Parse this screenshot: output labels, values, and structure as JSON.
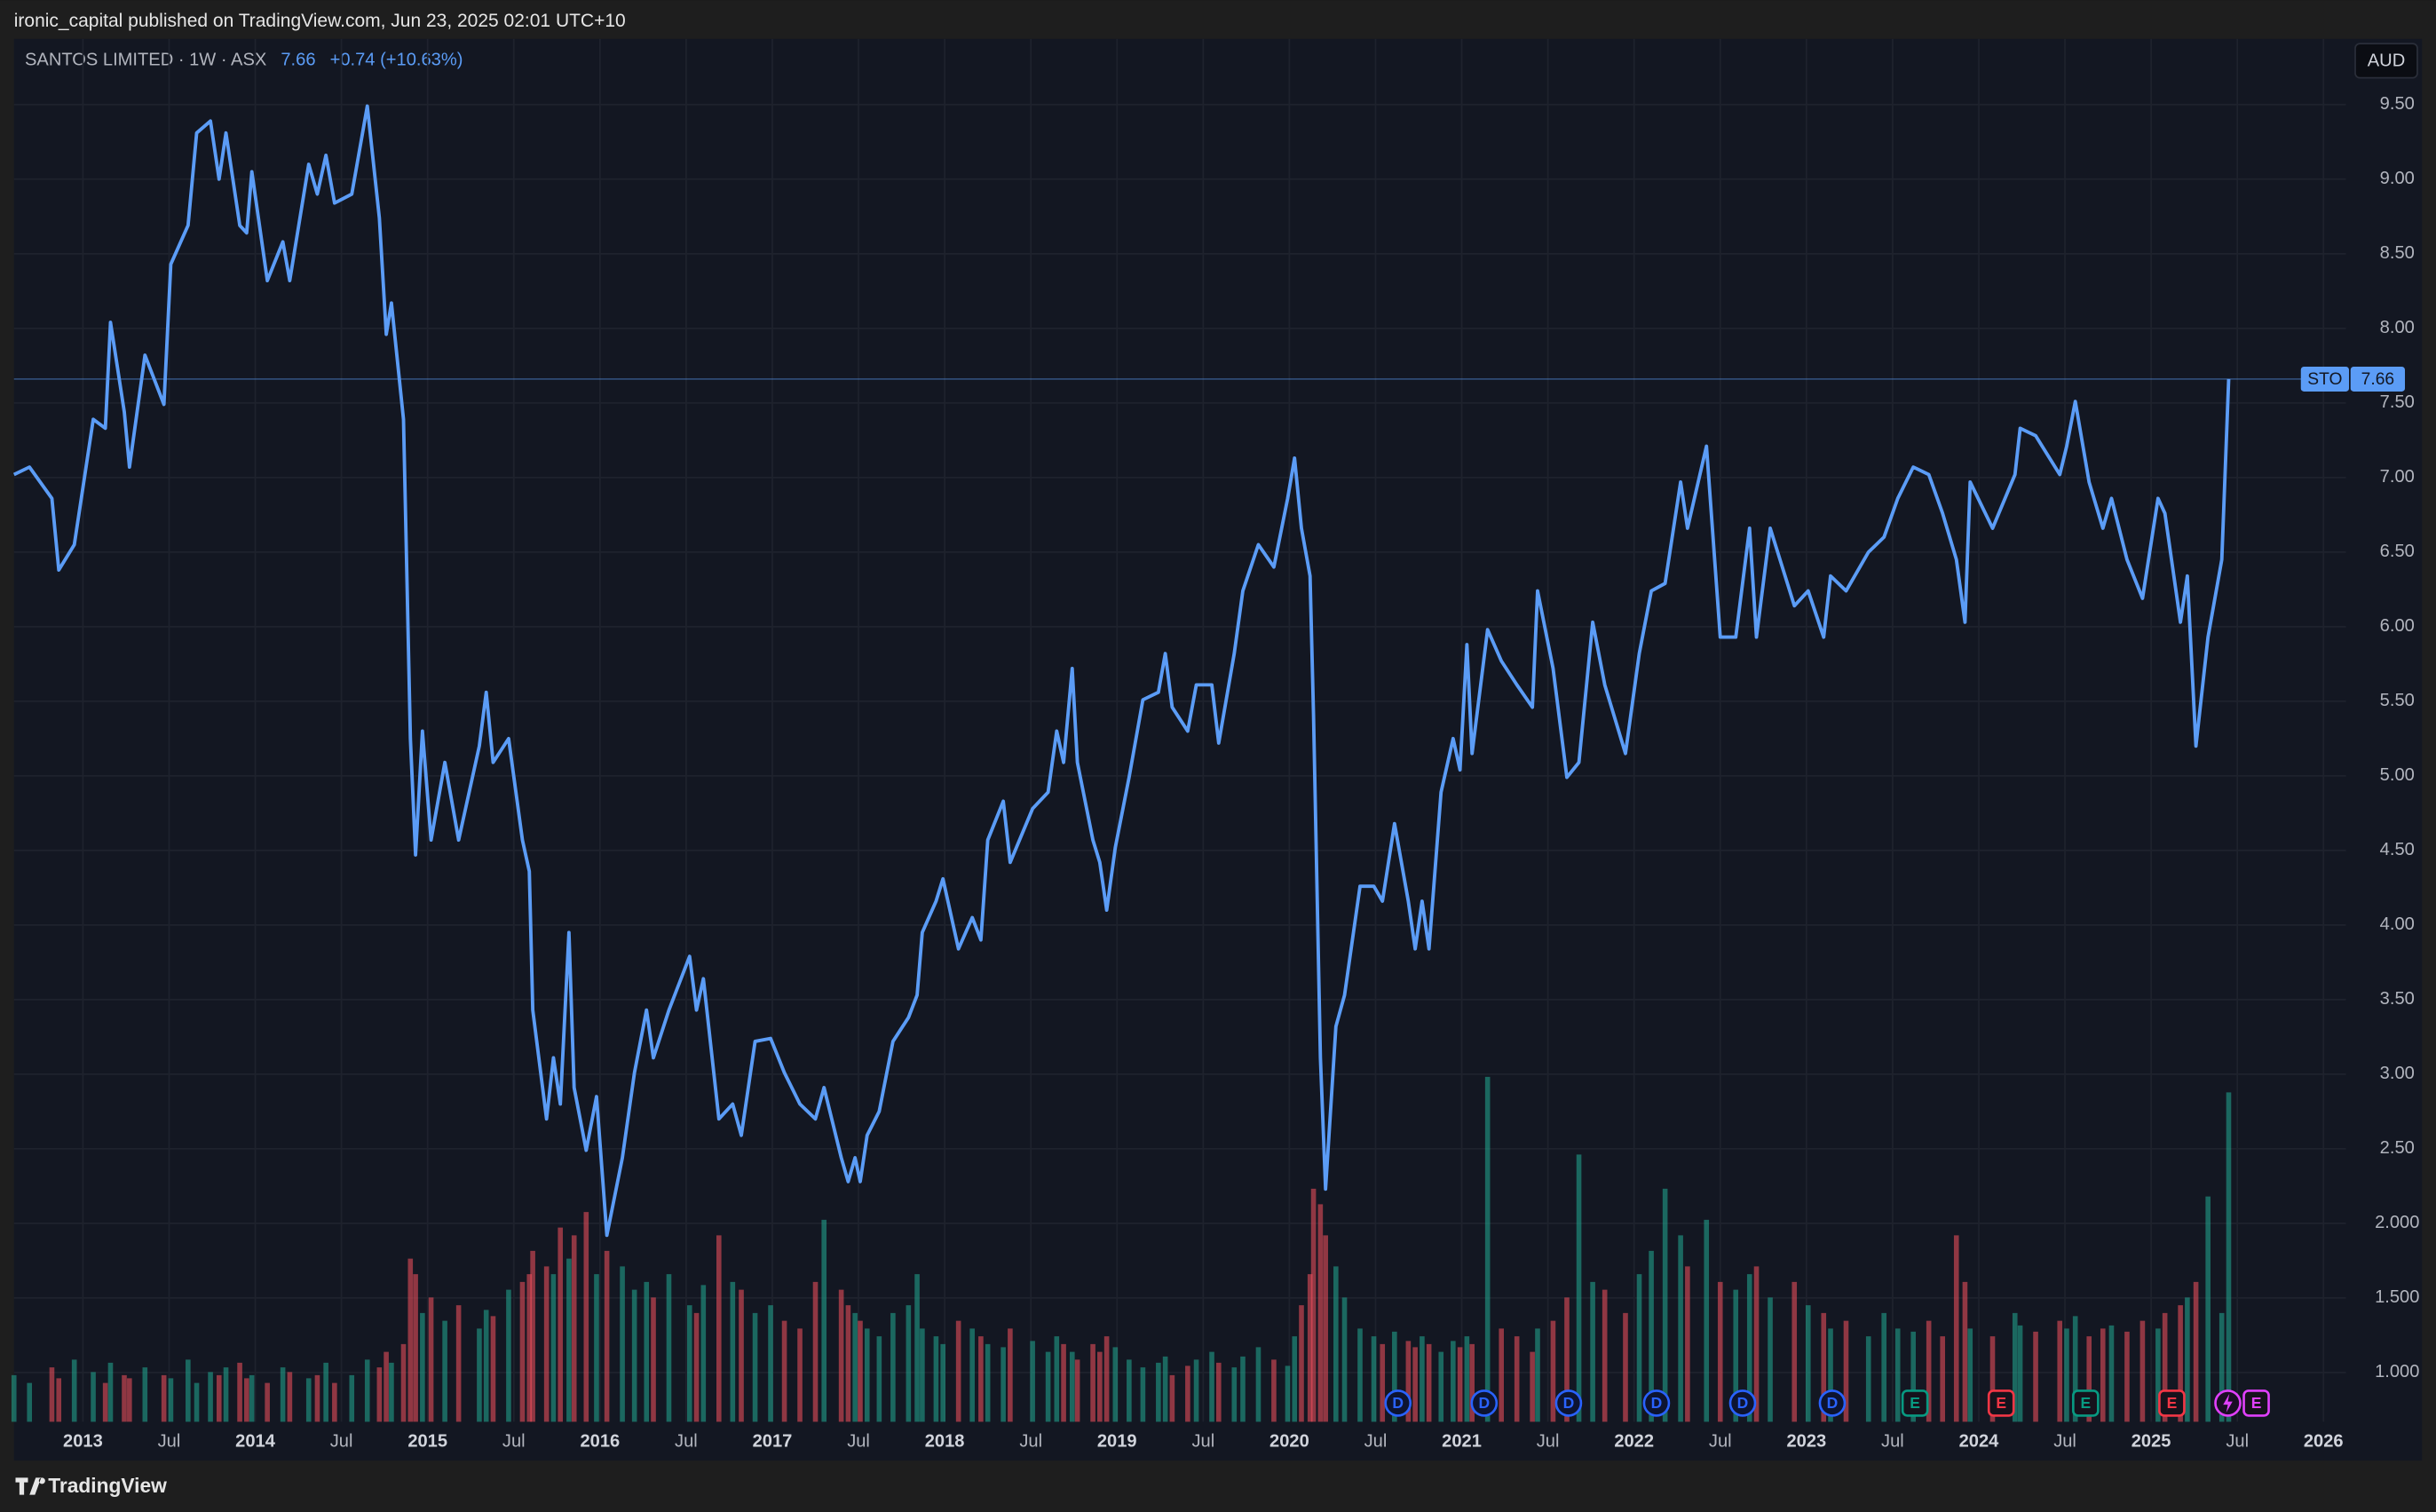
{
  "header": {
    "publisher": "ironic_capital published on TradingView.com, Jun 23, 2025 02:01 UTC+10",
    "brand": "TradingView"
  },
  "chart_data": {
    "type": "line",
    "title": "SANTOS LIMITED · 1W · ASX",
    "change": "+0.74 (+10.63%)",
    "currency": "AUD",
    "xlim": [
      2012.6,
      2026.13
    ],
    "ylim": [
      0.67,
      9.94
    ],
    "grid": true,
    "xticks": [
      2013,
      {
        "value": 2013.5,
        "label": "Jul"
      },
      2014,
      {
        "value": 2014.5,
        "label": "Jul"
      },
      2015,
      {
        "value": 2015.5,
        "label": "Jul"
      },
      2016,
      {
        "value": 2016.5,
        "label": "Jul"
      },
      2017,
      {
        "value": 2017.5,
        "label": "Jul"
      },
      2018,
      {
        "value": 2018.5,
        "label": "Jul"
      },
      2019,
      {
        "value": 2019.5,
        "label": "Jul"
      },
      2020,
      {
        "value": 2020.5,
        "label": "Jul"
      },
      2021,
      {
        "value": 2021.5,
        "label": "Jul"
      },
      2022,
      {
        "value": 2022.5,
        "label": "Jul"
      },
      2023,
      {
        "value": 2023.5,
        "label": "Jul"
      },
      2024,
      {
        "value": 2024.5,
        "label": "Jul"
      },
      2025,
      {
        "value": 2025.5,
        "label": "Jul"
      },
      2026
    ],
    "yticks": [
      {
        "value": 1,
        "label": "1.000"
      },
      {
        "value": 1.5,
        "label": "1.500"
      },
      {
        "value": 2,
        "label": "2.000"
      },
      {
        "value": 2.5,
        "label": "2.50"
      },
      {
        "value": 3,
        "label": "3.00"
      },
      {
        "value": 3.5,
        "label": "3.50"
      },
      {
        "value": 4,
        "label": "4.00"
      },
      {
        "value": 4.5,
        "label": "4.50"
      },
      {
        "value": 5,
        "label": "5.00"
      },
      {
        "value": 5.5,
        "label": "5.50"
      },
      {
        "value": 6,
        "label": "6.00"
      },
      {
        "value": 6.5,
        "label": "6.50"
      },
      {
        "value": 7,
        "label": "7.00"
      },
      {
        "value": 7.5,
        "label": "7.50"
      },
      {
        "value": 8,
        "label": "8.00"
      },
      {
        "value": 8.5,
        "label": "8.50"
      },
      {
        "value": 9,
        "label": "9.00"
      },
      {
        "value": 9.5,
        "label": "9.50"
      }
    ],
    "x": [
      2012.6,
      2012.69,
      2012.82,
      2012.86,
      2012.95,
      2013.06,
      2013.13,
      2013.16,
      2013.24,
      2013.27,
      2013.36,
      2013.47,
      2013.51,
      2013.61,
      2013.66,
      2013.74,
      2013.79,
      2013.83,
      2013.91,
      2013.95,
      2013.98,
      2014.07,
      2014.16,
      2014.2,
      2014.31,
      2014.36,
      2014.41,
      2014.46,
      2014.56,
      2014.65,
      2014.72,
      2014.76,
      2014.79,
      2014.86,
      2014.9,
      2014.93,
      2014.97,
      2015.02,
      2015.1,
      2015.18,
      2015.3,
      2015.34,
      2015.38,
      2015.47,
      2015.55,
      2015.59,
      2015.61,
      2015.69,
      2015.73,
      2015.77,
      2015.82,
      2015.85,
      2015.92,
      2015.98,
      2016.04,
      2016.13,
      2016.2,
      2016.27,
      2016.31,
      2016.4,
      2016.52,
      2016.56,
      2016.6,
      2016.69,
      2016.77,
      2016.82,
      2016.9,
      2016.99,
      2017.07,
      2017.16,
      2017.25,
      2017.3,
      2017.4,
      2017.44,
      2017.48,
      2017.51,
      2017.55,
      2017.62,
      2017.7,
      2017.79,
      2017.84,
      2017.87,
      2017.95,
      2017.99,
      2018.08,
      2018.16,
      2018.21,
      2018.25,
      2018.34,
      2018.38,
      2018.51,
      2018.6,
      2018.65,
      2018.69,
      2018.74,
      2018.77,
      2018.86,
      2018.9,
      2018.94,
      2018.99,
      2019.07,
      2019.15,
      2019.24,
      2019.28,
      2019.32,
      2019.41,
      2019.46,
      2019.55,
      2019.59,
      2019.68,
      2019.73,
      2019.82,
      2019.91,
      2019.99,
      2020.03,
      2020.07,
      2020.12,
      2020.14,
      2020.18,
      2020.21,
      2020.27,
      2020.32,
      2020.41,
      2020.49,
      2020.54,
      2020.61,
      2020.69,
      2020.73,
      2020.77,
      2020.81,
      2020.88,
      2020.95,
      2020.99,
      2021.03,
      2021.06,
      2021.15,
      2021.23,
      2021.32,
      2021.41,
      2021.44,
      2021.53,
      2021.61,
      2021.68,
      2021.76,
      2021.83,
      2021.95,
      2022.03,
      2022.1,
      2022.18,
      2022.27,
      2022.31,
      2022.42,
      2022.5,
      2022.59,
      2022.67,
      2022.71,
      2022.79,
      2022.93,
      2023.01,
      2023.1,
      2023.14,
      2023.23,
      2023.36,
      2023.45,
      2023.53,
      2023.62,
      2023.71,
      2023.79,
      2023.87,
      2023.92,
      2023.95,
      2024.08,
      2024.21,
      2024.24,
      2024.33,
      2024.47,
      2024.51,
      2024.56,
      2024.64,
      2024.72,
      2024.77,
      2024.86,
      2024.95,
      2025.04,
      2025.08,
      2025.17,
      2025.21,
      2025.26,
      2025.33,
      2025.41,
      2025.45
    ],
    "series": [
      {
        "name": "STO",
        "color": "#5b9cf6",
        "values": [
          7.02,
          7.07,
          6.86,
          6.38,
          6.55,
          7.39,
          7.33,
          8.04,
          7.44,
          7.07,
          7.82,
          7.49,
          8.43,
          8.69,
          9.31,
          9.39,
          9.0,
          9.31,
          8.69,
          8.64,
          9.05,
          8.32,
          8.58,
          8.32,
          9.1,
          8.9,
          9.16,
          8.84,
          8.9,
          9.49,
          8.74,
          7.96,
          8.17,
          7.39,
          5.25,
          4.47,
          5.3,
          4.57,
          5.09,
          4.57,
          5.2,
          5.56,
          5.09,
          5.25,
          4.57,
          4.36,
          3.43,
          2.7,
          3.11,
          2.8,
          3.95,
          2.91,
          2.49,
          2.85,
          1.92,
          2.44,
          3.01,
          3.43,
          3.11,
          3.43,
          3.79,
          3.43,
          3.64,
          2.7,
          2.8,
          2.59,
          3.22,
          3.24,
          3.01,
          2.8,
          2.7,
          2.91,
          2.44,
          2.28,
          2.44,
          2.28,
          2.59,
          2.75,
          3.22,
          3.38,
          3.53,
          3.95,
          4.16,
          4.31,
          3.84,
          4.05,
          3.9,
          4.57,
          4.83,
          4.42,
          4.78,
          4.89,
          5.3,
          5.09,
          5.72,
          5.09,
          4.57,
          4.42,
          4.1,
          4.52,
          4.99,
          5.51,
          5.56,
          5.82,
          5.46,
          5.3,
          5.61,
          5.61,
          5.22,
          5.82,
          6.24,
          6.55,
          6.4,
          6.86,
          7.13,
          6.66,
          6.34,
          5.41,
          3.11,
          2.23,
          3.32,
          3.53,
          4.26,
          4.26,
          4.16,
          4.68,
          4.16,
          3.84,
          4.16,
          3.84,
          4.89,
          5.25,
          5.04,
          5.88,
          5.15,
          5.98,
          5.77,
          5.61,
          5.46,
          6.24,
          5.72,
          4.99,
          5.09,
          6.03,
          5.61,
          5.15,
          5.82,
          6.24,
          6.29,
          6.97,
          6.66,
          7.21,
          5.93,
          5.93,
          6.66,
          5.93,
          6.66,
          6.14,
          6.24,
          5.93,
          6.34,
          6.24,
          6.5,
          6.6,
          6.86,
          7.07,
          7.02,
          6.76,
          6.45,
          6.03,
          6.97,
          6.66,
          7.02,
          7.33,
          7.28,
          7.02,
          7.21,
          7.51,
          6.97,
          6.66,
          6.86,
          6.45,
          6.19,
          6.86,
          6.76,
          6.03,
          6.34,
          5.2,
          5.93,
          6.45,
          7.66
        ]
      }
    ],
    "volume": {
      "up_color": "#22ab94",
      "down_color": "#f7525f",
      "lim": [
        0,
        890
      ],
      "values": [
        30,
        25,
        35,
        28,
        40,
        32,
        25,
        38,
        30,
        28,
        35,
        30,
        28,
        40,
        25,
        32,
        30,
        35,
        38,
        28,
        30,
        25,
        35,
        32,
        28,
        30,
        38,
        25,
        30,
        40,
        35,
        45,
        38,
        50,
        105,
        95,
        70,
        80,
        65,
        75,
        60,
        72,
        68,
        85,
        90,
        95,
        110,
        100,
        95,
        125,
        105,
        120,
        135,
        95,
        110,
        100,
        85,
        90,
        80,
        95,
        75,
        70,
        88,
        120,
        90,
        85,
        70,
        75,
        65,
        60,
        90,
        130,
        85,
        75,
        70,
        65,
        60,
        55,
        70,
        75,
        95,
        60,
        55,
        50,
        65,
        60,
        55,
        50,
        48,
        60,
        52,
        45,
        55,
        50,
        45,
        40,
        50,
        45,
        55,
        48,
        40,
        35,
        38,
        42,
        30,
        36,
        40,
        45,
        38,
        35,
        42,
        48,
        40,
        36,
        55,
        75,
        95,
        150,
        140,
        120,
        100,
        80,
        60,
        55,
        50,
        58,
        52,
        48,
        55,
        50,
        45,
        52,
        48,
        55,
        50,
        222,
        60,
        55,
        45,
        60,
        65,
        80,
        172,
        90,
        85,
        70,
        95,
        110,
        150,
        120,
        100,
        130,
        90,
        85,
        95,
        100,
        80,
        90,
        75,
        70,
        60,
        65,
        55,
        70,
        60,
        58,
        65,
        55,
        120,
        90,
        60,
        55,
        70,
        62,
        58,
        65,
        60,
        68,
        55,
        60,
        62,
        58,
        65,
        60,
        70,
        75,
        80,
        90,
        145,
        70,
        212
      ]
    },
    "events": [
      {
        "x": 2020.63,
        "label": "D",
        "color": "#2962ff"
      },
      {
        "x": 2021.13,
        "label": "D",
        "color": "#2962ff"
      },
      {
        "x": 2021.62,
        "label": "D",
        "color": "#2962ff"
      },
      {
        "x": 2022.13,
        "label": "D",
        "color": "#2962ff"
      },
      {
        "x": 2022.63,
        "label": "D",
        "color": "#2962ff"
      },
      {
        "x": 2023.15,
        "label": "D",
        "color": "#2962ff"
      },
      {
        "x": 2023.63,
        "label": "E",
        "color": "#089981"
      },
      {
        "x": 2024.13,
        "label": "E",
        "color": "#f23645"
      },
      {
        "x": 2024.62,
        "label": "E",
        "color": "#089981"
      },
      {
        "x": 2025.12,
        "label": "E",
        "color": "#f23645"
      },
      {
        "x": 2025.61,
        "label": "E",
        "color": "#e040fb"
      }
    ]
  }
}
